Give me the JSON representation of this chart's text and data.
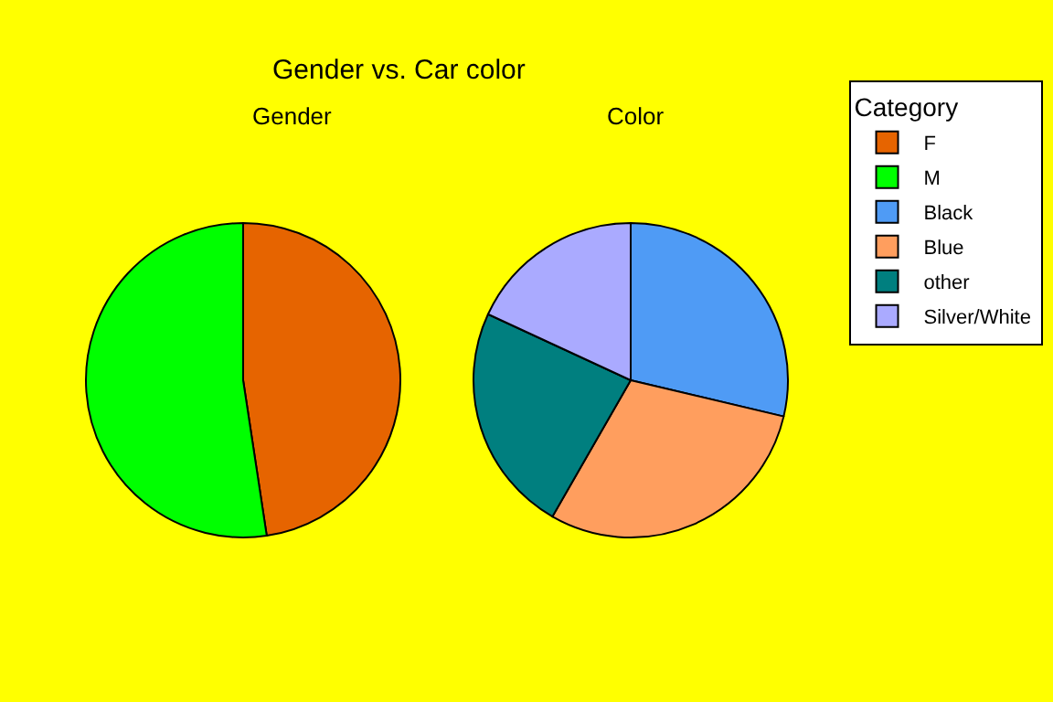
{
  "chart_data": [
    {
      "type": "other",
      "title": "Gender vs. Car color"
    },
    {
      "type": "pie",
      "title": "Gender",
      "categories": [
        "F",
        "M"
      ],
      "values": [
        47.6,
        52.4
      ],
      "colors": [
        "#e66400",
        "#00ff00"
      ],
      "legend": "top right"
    },
    {
      "type": "pie",
      "title": "Color",
      "categories": [
        "Black",
        "Blue",
        "other",
        "Silver/White"
      ],
      "values": [
        28.7,
        29.6,
        23.6,
        18.1
      ],
      "colors": [
        "#4f9bf5",
        "#ff9e5e",
        "#007f7f",
        "#aaaaff"
      ],
      "legend": "top right",
      "legend_title": "Category"
    }
  ]
}
